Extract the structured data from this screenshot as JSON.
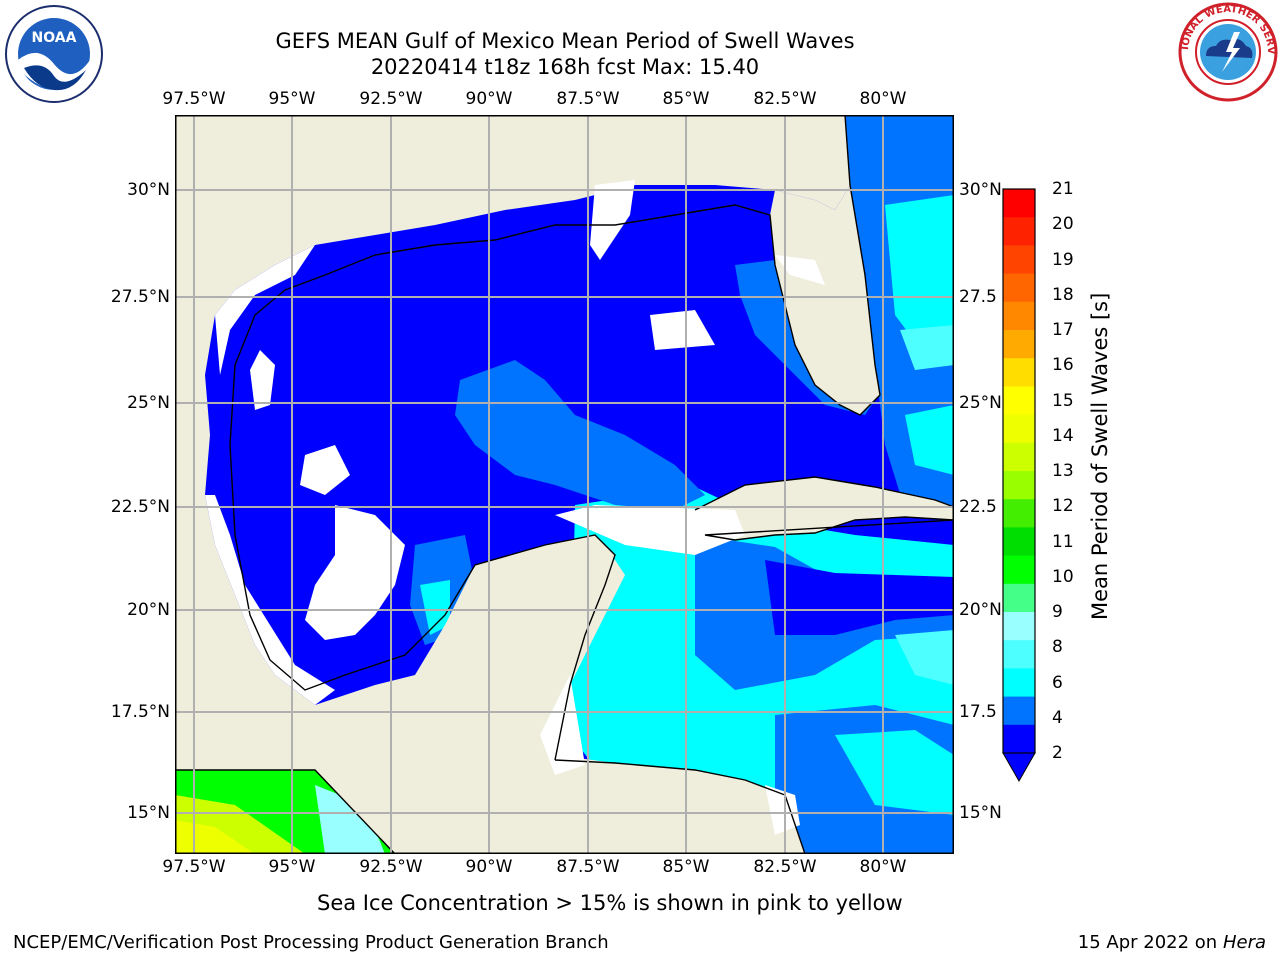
{
  "header": {
    "title_line1": "GEFS MEAN Gulf of Mexico Mean Period of Swell Waves",
    "title_line2": "20220414 t18z 168h fcst   Max: 15.40"
  },
  "logos": {
    "noaa_text": "NOAA",
    "noaa_ring": "NATIONAL OCEANIC AND ATMOSPHERIC ADMINISTRATION · U.S. DEPARTMENT OF COMMERCE",
    "nws_ring": "NATIONAL WEATHER SERVICE"
  },
  "map": {
    "lon_ticks": [
      "97.5°W",
      "95°W",
      "92.5°W",
      "90°W",
      "87.5°W",
      "85°W",
      "82.5°W",
      "80°W"
    ],
    "lat_ticks_left": [
      "30°N",
      "27.5°N",
      "25°N",
      "22.5°N",
      "20°N",
      "17.5°N",
      "15°N"
    ],
    "lat_ticks_right": [
      "30°N",
      "27.5",
      "25°N",
      "22.5",
      "20°N",
      "17.5",
      "15°N"
    ],
    "colors": {
      "land": "#efeedc",
      "ocean_2_4": "#0000ff",
      "ocean_4_6": "#0073ff",
      "ocean_6_8": "#00ffff",
      "ocean_8_9": "#4dffff",
      "grid": "#b0b0b0"
    }
  },
  "colorbar": {
    "label": "Mean Period of Swell Waves [s]",
    "ticks": [
      "21",
      "20",
      "19",
      "18",
      "17",
      "16",
      "15",
      "14",
      "13",
      "12",
      "11",
      "10",
      "9",
      "8",
      "6",
      "4",
      "2"
    ],
    "colors": [
      "#ff0000",
      "#ff2200",
      "#ff4400",
      "#ff6600",
      "#ff8800",
      "#ffaa00",
      "#ffdd00",
      "#ffff00",
      "#eeff00",
      "#ccff00",
      "#99ff00",
      "#44ee00",
      "#00dd00",
      "#00ff00",
      "#44ff88",
      "#99ffff",
      "#4dffff",
      "#00ffff",
      "#0073ff",
      "#0000ff"
    ]
  },
  "footer": {
    "note": "Sea Ice Concentration > 15% is shown in pink to yellow",
    "left": "NCEP/EMC/Verification Post Processing Product Generation Branch",
    "right_date": "15 Apr 2022 on ",
    "right_host": "Hera"
  }
}
